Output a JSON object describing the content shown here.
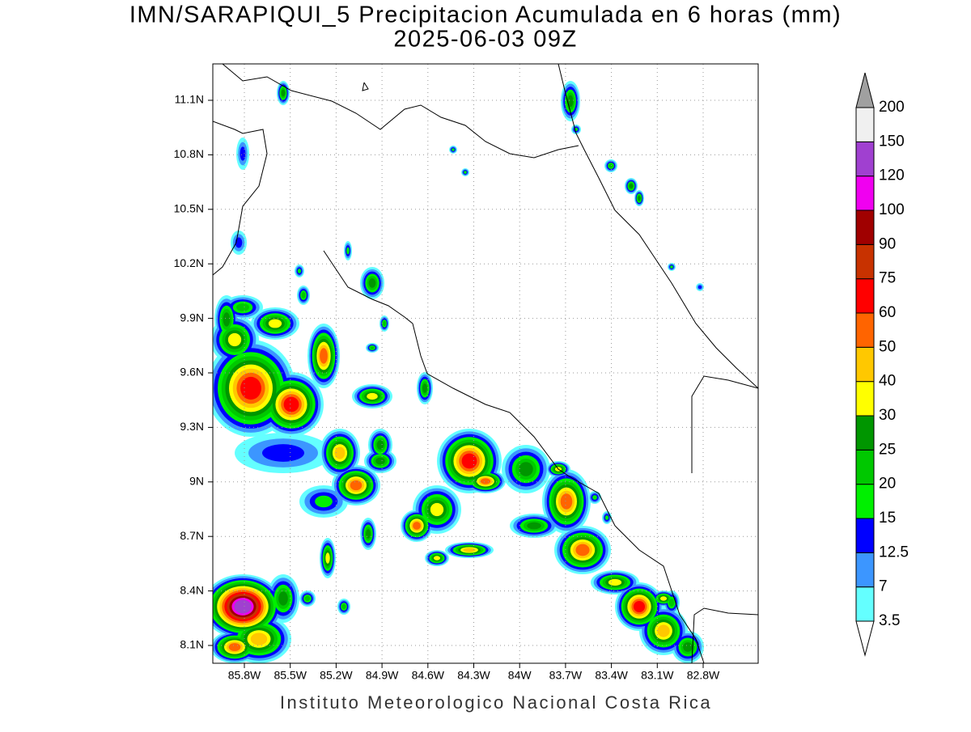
{
  "header": {
    "title": "IMN/SARAPIQUI_5 Precipitacion Acumulada en 6 horas (mm)",
    "subtitle": "2025-06-03 09Z"
  },
  "map": {
    "lat_labels": [
      "11.1N",
      "10.8N",
      "10.5N",
      "10.2N",
      "9.9N",
      "9.6N",
      "9.3N",
      "9N",
      "8.7N",
      "8.4N",
      "8.1N"
    ],
    "lon_labels": [
      "85.8W",
      "85.5W",
      "85.2W",
      "84.9W",
      "84.6W",
      "84.3W",
      "84W",
      "83.7W",
      "83.4W",
      "83.1W",
      "82.8W"
    ]
  },
  "colorbar": {
    "levels": [
      3.5,
      7,
      12.5,
      15,
      20,
      25,
      30,
      40,
      50,
      60,
      75,
      90,
      100,
      120,
      150,
      200
    ],
    "colors": [
      "#64ffff",
      "#3c96ff",
      "#0000ff",
      "#00f000",
      "#00c800",
      "#009600",
      "#ffff00",
      "#ffc800",
      "#ff6400",
      "#ff0000",
      "#c83200",
      "#a00000",
      "#f000f0",
      "#a040d0",
      "#f0f0f0"
    ],
    "over_color": "#a0a0a0",
    "under_color": "#ffffff"
  },
  "footer": {
    "credit": "Instituto Meteorologico Nacional Costa Rica"
  }
}
